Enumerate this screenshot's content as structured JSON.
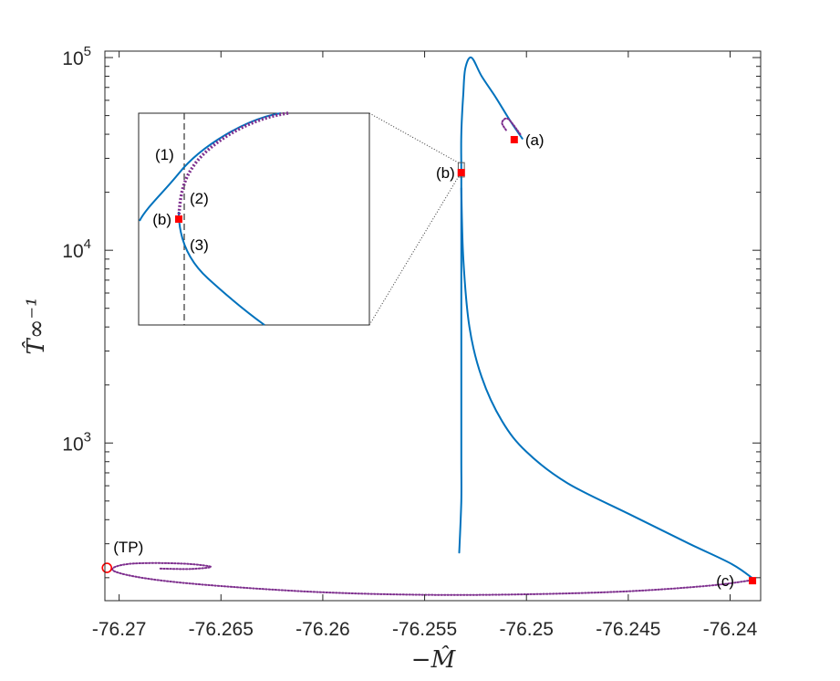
{
  "chart_data": {
    "type": "line",
    "xlabel": "−M̂",
    "ylabel": "T̂∞⁻¹",
    "xlim": [
      -76.2707,
      -76.2385
    ],
    "ylim": [
      152,
      108000
    ],
    "yscale": "log",
    "xticks": [
      -76.27,
      -76.265,
      -76.26,
      -76.255,
      -76.25,
      -76.245,
      -76.24
    ],
    "xtick_labels": [
      "-76.27",
      "-76.265",
      "-76.26",
      "-76.255",
      "-76.25",
      "-76.245",
      "-76.24"
    ],
    "yticks": [
      1000,
      10000,
      100000
    ],
    "ytick_labels": [
      {
        "base": "10",
        "exp": "3"
      },
      {
        "base": "10",
        "exp": "4"
      },
      {
        "base": "10",
        "exp": "5"
      }
    ],
    "colors": {
      "solid": "#0072BD",
      "dotted": "#7E2F8E",
      "marker": "#FF0000",
      "axes": "#262626",
      "inset_dash": "#333333"
    },
    "series": [
      {
        "style": "solid",
        "points": [
          [
            -76.2502,
            38000
          ],
          [
            -76.2508,
            47000
          ],
          [
            -76.2515,
            62000
          ],
          [
            -76.2522,
            80000
          ],
          [
            -76.2527,
            100000
          ],
          [
            -76.253,
            88000
          ],
          [
            -76.2531,
            65000
          ],
          [
            -76.2532,
            40000
          ],
          [
            -76.2532,
            25000
          ],
          [
            -76.2532,
            12000
          ],
          [
            -76.2532,
            6000
          ],
          [
            -76.2532,
            3000
          ],
          [
            -76.2532,
            1500
          ],
          [
            -76.2532,
            800
          ],
          [
            -76.2532,
            500
          ],
          [
            -76.2533,
            270
          ]
        ]
      },
      {
        "style": "solid",
        "points": [
          [
            -76.2532,
            21000
          ],
          [
            -76.2531,
            9000
          ],
          [
            -76.2528,
            4000
          ],
          [
            -76.2522,
            2200
          ],
          [
            -76.2512,
            1300
          ],
          [
            -76.25,
            900
          ],
          [
            -76.248,
            620
          ],
          [
            -76.245,
            430
          ],
          [
            -76.242,
            300
          ],
          [
            -76.2399,
            235
          ],
          [
            -76.2388,
            195
          ]
        ]
      },
      {
        "style": "dotted",
        "points": [
          [
            -76.2503,
            40000
          ],
          [
            -76.2509,
            48000
          ],
          [
            -76.2512,
            46000
          ],
          [
            -76.251,
            42000
          ]
        ]
      },
      {
        "style": "dotted",
        "points": [
          [
            -76.2388,
            195
          ],
          [
            -76.241,
            182
          ],
          [
            -76.245,
            170
          ],
          [
            -76.25,
            164
          ],
          [
            -76.255,
            163
          ],
          [
            -76.26,
            168
          ],
          [
            -76.265,
            181
          ],
          [
            -76.2685,
            197
          ],
          [
            -76.2703,
            218
          ],
          [
            -76.2695,
            236
          ],
          [
            -76.267,
            237
          ],
          [
            -76.2655,
            228
          ],
          [
            -76.2665,
            222
          ],
          [
            -76.268,
            223
          ]
        ]
      }
    ],
    "points": [
      {
        "label": "(a)",
        "x": -76.2506,
        "y": 37500
      },
      {
        "label": "(b)",
        "x": -76.2532,
        "y": 25300
      },
      {
        "label": "(c)",
        "x": -76.2389,
        "y": 193
      },
      {
        "label": "(TP)",
        "x": -76.2706,
        "y": 225,
        "marker": "open-circle"
      }
    ],
    "inset": {
      "region_x": [
        -76.25335,
        -76.25305
      ],
      "region_y": [
        24000,
        28500
      ],
      "labels": [
        "(1)",
        "(2)",
        "(3)",
        "(b)"
      ]
    }
  }
}
